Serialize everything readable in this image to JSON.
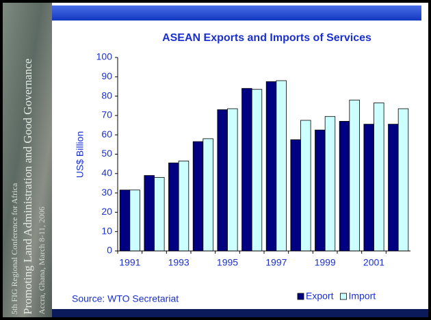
{
  "slide": {
    "conference": "5th FIG Regional Conference for Africa",
    "theme": "Promoting Land Administration and Good Governance",
    "place": "Accra, Ghana, March 8-11, 2006"
  },
  "chart_data": {
    "type": "bar",
    "title": "ASEAN Exports and Imports of Services",
    "y_label": "US$ Billion",
    "source": "Source: WTO Secretariat",
    "categories": [
      "1991",
      null,
      "1993",
      null,
      "1995",
      null,
      "1997",
      null,
      "1999",
      null,
      "2001",
      null
    ],
    "series": [
      {
        "name": "Export",
        "color": "#000080",
        "values": [
          31.5,
          39,
          45.5,
          56.5,
          73,
          84,
          87.5,
          57.5,
          62.5,
          67,
          65.5,
          65.5
        ]
      },
      {
        "name": "Import",
        "color": "#ccffff",
        "values": [
          31.5,
          38,
          46.5,
          58,
          73.5,
          83.5,
          88,
          67.5,
          69.5,
          78,
          76.5,
          73.5
        ]
      }
    ],
    "ylim": [
      0,
      100
    ],
    "yticks": [
      0,
      10,
      20,
      30,
      40,
      50,
      60,
      70,
      80,
      90,
      100
    ],
    "grid": false,
    "legend": "bottom-right"
  }
}
